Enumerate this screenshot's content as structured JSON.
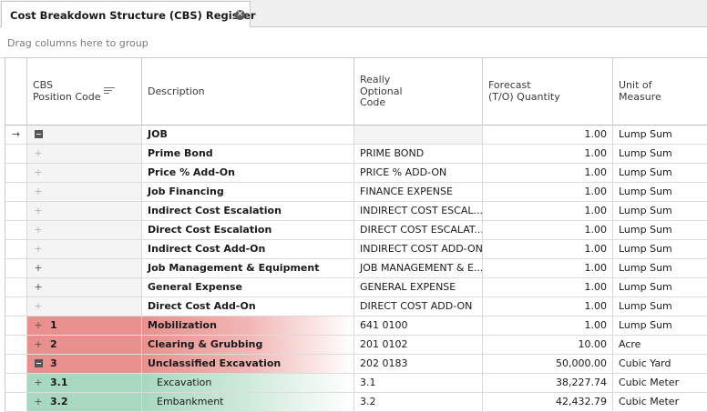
{
  "tab": {
    "title": "Cost Breakdown Structure (CBS) Register",
    "close_icon": "close-circle-icon"
  },
  "group_panel": {
    "text": "Drag columns here to group"
  },
  "columns": [
    {
      "key": "code",
      "label": "CBS\nPosition Code"
    },
    {
      "key": "description",
      "label": "Description"
    },
    {
      "key": "optional_code",
      "label": "Really\nOptional\nCode"
    },
    {
      "key": "forecast_qty",
      "label": "Forecast\n(T/O) Quantity"
    },
    {
      "key": "uom",
      "label": "Unit of\nMeasure"
    }
  ],
  "rows": [
    {
      "indicator": "→",
      "expander": "minus",
      "code": "",
      "description": "JOB",
      "optional_code": "",
      "qty": "1.00",
      "uom": "Lump Sum",
      "style": "job"
    },
    {
      "indicator": "",
      "expander": "plus-light",
      "code": "",
      "description": "Prime Bond",
      "optional_code": "PRIME BOND",
      "qty": "1.00",
      "uom": "Lump Sum",
      "style": "gray"
    },
    {
      "indicator": "",
      "expander": "plus-light",
      "code": "",
      "description": "Price % Add-On",
      "optional_code": "PRICE % ADD-ON",
      "qty": "1.00",
      "uom": "Lump Sum",
      "style": "gray"
    },
    {
      "indicator": "",
      "expander": "plus-light",
      "code": "",
      "description": "Job Financing",
      "optional_code": "FINANCE EXPENSE",
      "qty": "1.00",
      "uom": "Lump Sum",
      "style": "gray"
    },
    {
      "indicator": "",
      "expander": "plus-light",
      "code": "",
      "description": "Indirect Cost Escalation",
      "optional_code": "INDIRECT COST ESCAL...",
      "qty": "1.00",
      "uom": "Lump Sum",
      "style": "gray"
    },
    {
      "indicator": "",
      "expander": "plus-light",
      "code": "",
      "description": "Direct Cost Escalation",
      "optional_code": "DIRECT COST ESCALAT...",
      "qty": "1.00",
      "uom": "Lump Sum",
      "style": "gray"
    },
    {
      "indicator": "",
      "expander": "plus-light",
      "code": "",
      "description": "Indirect Cost Add-On",
      "optional_code": "INDIRECT COST ADD-ON",
      "qty": "1.00",
      "uom": "Lump Sum",
      "style": "gray"
    },
    {
      "indicator": "",
      "expander": "plus",
      "code": "",
      "description": "Job Management & Equipment",
      "optional_code": "JOB MANAGEMENT & E...",
      "qty": "1.00",
      "uom": "Lump Sum",
      "style": "gray"
    },
    {
      "indicator": "",
      "expander": "plus",
      "code": "",
      "description": "General Expense",
      "optional_code": "GENERAL EXPENSE",
      "qty": "1.00",
      "uom": "Lump Sum",
      "style": "gray"
    },
    {
      "indicator": "",
      "expander": "plus-light",
      "code": "",
      "description": "Direct Cost Add-On",
      "optional_code": "DIRECT COST ADD-ON",
      "qty": "1.00",
      "uom": "Lump Sum",
      "style": "gray"
    },
    {
      "indicator": "",
      "expander": "plus",
      "code": "1",
      "description": "Mobilization",
      "optional_code": "641 0100",
      "qty": "1.00",
      "uom": "Lump Sum",
      "style": "red"
    },
    {
      "indicator": "",
      "expander": "plus",
      "code": "2",
      "description": "Clearing & Grubbing",
      "optional_code": "201 0102",
      "qty": "10.00",
      "uom": "Acre",
      "style": "red"
    },
    {
      "indicator": "",
      "expander": "minus",
      "code": "3",
      "description": "Unclassified Excavation",
      "optional_code": "202 0183",
      "qty": "50,000.00",
      "uom": "Cubic Yard",
      "style": "red"
    },
    {
      "indicator": "",
      "expander": "plus",
      "code": "3.1",
      "description": "Excavation",
      "optional_code": "3.1",
      "qty": "38,227.74",
      "uom": "Cubic Meter",
      "style": "green"
    },
    {
      "indicator": "",
      "expander": "plus",
      "code": "3.2",
      "description": "Embankment",
      "optional_code": "3.2",
      "qty": "42,432.79",
      "uom": "Cubic Meter",
      "style": "green"
    }
  ],
  "colors": {
    "red": "#e9908e",
    "green": "#a8d8bf",
    "gray": "#f4f4f4"
  }
}
